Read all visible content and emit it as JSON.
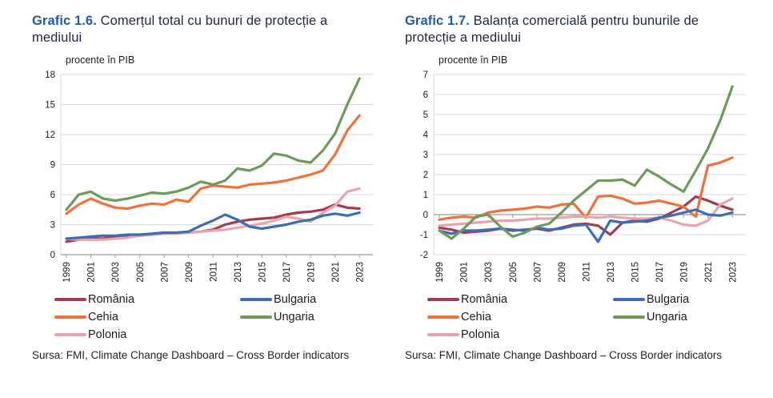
{
  "colors": {
    "accent_title_blue": "#1f5ca8",
    "title_text": "#1e2749",
    "body_text": "#1d1d1b",
    "gridline": "#d9d9d9",
    "axis_line": "#9a9a9a",
    "background": "#ffffff"
  },
  "panels": [
    {
      "title_prefix": "Grafic 1.6.",
      "title_text": " Comerțul total cu bunuri de protecție a mediului",
      "unit_label": "procente în PIB",
      "source": "Sursa: FMI, Climate Change Dashboard – Cross Border indicators"
    },
    {
      "title_prefix": "Grafic 1.7.",
      "title_text": " Balanța comercială pentru bunurile de protecție a mediului",
      "unit_label": "procente în PIB",
      "source": "Sursa: FMI, Climate Change Dashboard – Cross Border indicators"
    }
  ],
  "chart_data": [
    {
      "type": "line",
      "title": "Grafic 1.6. Comerțul total cu bunuri de protecție a mediului",
      "ylabel": "procente în PIB",
      "xlabel": "",
      "grid": true,
      "legend_position": "bottom",
      "legend_columns": 2,
      "ylim": [
        0,
        18
      ],
      "ytick_step": 3,
      "x_tick_interval": 2,
      "x": [
        1999,
        2000,
        2001,
        2002,
        2003,
        2004,
        2005,
        2006,
        2007,
        2008,
        2009,
        2010,
        2011,
        2012,
        2013,
        2014,
        2015,
        2016,
        2017,
        2018,
        2019,
        2020,
        2021,
        2022,
        2023
      ],
      "series": [
        {
          "name": "România",
          "color": "#a63a50",
          "values": [
            1.3,
            1.5,
            1.6,
            1.6,
            1.8,
            1.9,
            1.9,
            2.0,
            2.1,
            2.2,
            2.2,
            2.3,
            2.5,
            3.0,
            3.3,
            3.5,
            3.6,
            3.7,
            4.0,
            4.2,
            4.3,
            4.5,
            5.0,
            4.7,
            4.6
          ]
        },
        {
          "name": "Cehia",
          "color": "#f1713b",
          "values": [
            4.1,
            5.0,
            5.6,
            5.1,
            4.7,
            4.6,
            4.9,
            5.1,
            5.0,
            5.5,
            5.3,
            6.6,
            6.9,
            6.8,
            6.7,
            7.0,
            7.1,
            7.2,
            7.4,
            7.7,
            8.0,
            8.4,
            10.0,
            12.4,
            13.9
          ]
        },
        {
          "name": "Polonia",
          "color": "#eba3ad",
          "values": [
            1.6,
            1.5,
            1.5,
            1.5,
            1.6,
            1.7,
            1.9,
            2.0,
            2.1,
            2.1,
            2.2,
            2.3,
            2.4,
            2.5,
            2.7,
            2.9,
            3.1,
            3.4,
            3.8,
            3.6,
            3.3,
            4.2,
            4.9,
            6.3,
            6.6
          ]
        },
        {
          "name": "Bulgaria",
          "color": "#3a6eb5",
          "values": [
            1.6,
            1.7,
            1.8,
            1.9,
            1.9,
            2.0,
            2.0,
            2.1,
            2.2,
            2.2,
            2.3,
            2.9,
            3.4,
            4.0,
            3.5,
            2.8,
            2.6,
            2.8,
            3.0,
            3.3,
            3.5,
            3.9,
            4.1,
            3.9,
            4.2
          ]
        },
        {
          "name": "Ungaria",
          "color": "#6b9c59",
          "values": [
            4.5,
            6.0,
            6.3,
            5.6,
            5.4,
            5.6,
            5.9,
            6.2,
            6.1,
            6.3,
            6.7,
            7.3,
            7.0,
            7.4,
            8.6,
            8.4,
            8.9,
            10.1,
            9.9,
            9.4,
            9.2,
            10.4,
            12.1,
            15.0,
            17.6
          ]
        }
      ]
    },
    {
      "type": "line",
      "title": "Grafic 1.7. Balanța comercială pentru bunurile de protecție a mediului",
      "ylabel": "procente în PIB",
      "xlabel": "",
      "grid": true,
      "legend_position": "bottom",
      "legend_columns": 2,
      "ylim": [
        -2,
        7
      ],
      "ytick_step": 1,
      "x_tick_interval": 2,
      "x": [
        1999,
        2000,
        2001,
        2002,
        2003,
        2004,
        2005,
        2006,
        2007,
        2008,
        2009,
        2010,
        2011,
        2012,
        2013,
        2014,
        2015,
        2016,
        2017,
        2018,
        2019,
        2020,
        2021,
        2022,
        2023
      ],
      "series": [
        {
          "name": "România",
          "color": "#a63a50",
          "values": [
            -0.65,
            -0.75,
            -0.9,
            -0.85,
            -0.8,
            -0.7,
            -0.8,
            -0.75,
            -0.7,
            -0.8,
            -0.65,
            -0.5,
            -0.45,
            -0.55,
            -1.0,
            -0.4,
            -0.3,
            -0.35,
            -0.2,
            0.1,
            0.4,
            0.9,
            0.7,
            0.45,
            0.25
          ]
        },
        {
          "name": "Cehia",
          "color": "#f1713b",
          "values": [
            -0.25,
            -0.15,
            -0.1,
            -0.15,
            0.1,
            0.2,
            0.25,
            0.3,
            0.4,
            0.35,
            0.5,
            0.55,
            -0.15,
            0.9,
            0.95,
            0.8,
            0.55,
            0.6,
            0.7,
            0.55,
            0.4,
            -0.1,
            2.45,
            2.6,
            2.85
          ]
        },
        {
          "name": "Polonia",
          "color": "#eba3ad",
          "values": [
            -0.55,
            -0.5,
            -0.45,
            -0.4,
            -0.35,
            -0.3,
            -0.3,
            -0.25,
            -0.2,
            -0.2,
            -0.15,
            -0.1,
            -0.1,
            -0.15,
            -0.1,
            -0.15,
            -0.2,
            -0.2,
            -0.15,
            -0.3,
            -0.5,
            -0.55,
            -0.3,
            0.5,
            0.8
          ]
        },
        {
          "name": "Bulgaria",
          "color": "#3a6eb5",
          "values": [
            -0.8,
            -0.95,
            -0.8,
            -0.8,
            -0.75,
            -0.7,
            -0.75,
            -0.8,
            -0.65,
            -0.75,
            -0.7,
            -0.55,
            -0.5,
            -1.35,
            -0.3,
            -0.4,
            -0.35,
            -0.3,
            -0.15,
            -0.05,
            0.1,
            0.25,
            0.0,
            -0.05,
            0.1
          ]
        },
        {
          "name": "Ungaria",
          "color": "#6b9c59",
          "values": [
            -0.8,
            -1.2,
            -0.7,
            -0.1,
            0.0,
            -0.6,
            -1.1,
            -0.9,
            -0.6,
            -0.45,
            0.1,
            0.7,
            1.2,
            1.7,
            1.7,
            1.75,
            1.45,
            2.25,
            1.9,
            1.5,
            1.15,
            2.2,
            3.3,
            4.7,
            6.4
          ]
        }
      ]
    }
  ]
}
